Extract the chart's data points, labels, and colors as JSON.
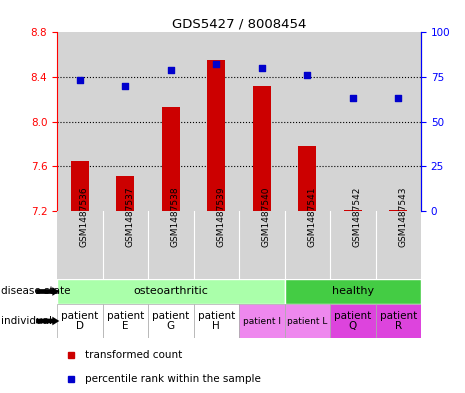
{
  "title": "GDS5427 / 8008454",
  "samples": [
    "GSM1487536",
    "GSM1487537",
    "GSM1487538",
    "GSM1487539",
    "GSM1487540",
    "GSM1487541",
    "GSM1487542",
    "GSM1487543"
  ],
  "bar_values": [
    7.65,
    7.51,
    8.13,
    8.55,
    8.32,
    7.78,
    7.21,
    7.21
  ],
  "bar_base": 7.2,
  "dot_values": [
    73,
    70,
    79,
    82,
    80,
    76,
    63,
    63
  ],
  "ylim_left": [
    7.2,
    8.8
  ],
  "ylim_right": [
    0,
    100
  ],
  "yticks_left": [
    7.2,
    7.6,
    8.0,
    8.4,
    8.8
  ],
  "yticks_right": [
    0,
    25,
    50,
    75,
    100
  ],
  "bar_color": "#cc0000",
  "dot_color": "#0000cc",
  "disease_state_colors": [
    "#aaffaa",
    "#44cc44"
  ],
  "individual_colors_white": "#ffffff",
  "individual_colors_light": "#ee88ee",
  "individual_colors_dark": "#dd44dd",
  "col_bg": "#d4d4d4",
  "legend_items": [
    "transformed count",
    "percentile rank within the sample"
  ],
  "ostr_count": 5,
  "hlth_count": 3
}
